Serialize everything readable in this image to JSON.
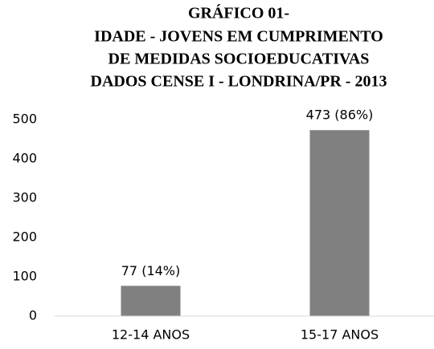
{
  "chart_data": {
    "type": "bar",
    "title": [
      "GRÁFICO 01-",
      "IDADE - JOVENS EM CUMPRIMENTO",
      "DE MEDIDAS SOCIOEDUCATIVAS",
      "DADOS CENSE I - LONDRINA/PR - 2013"
    ],
    "categories": [
      "12-14 ANOS",
      "15-17 ANOS"
    ],
    "values": [
      77,
      473
    ],
    "value_labels": [
      "77 (14%)",
      "473 (86%)"
    ],
    "color": "#808080",
    "ylim": [
      0,
      500
    ],
    "yticks": [
      0,
      100,
      200,
      300,
      400,
      500
    ],
    "grid": false
  }
}
